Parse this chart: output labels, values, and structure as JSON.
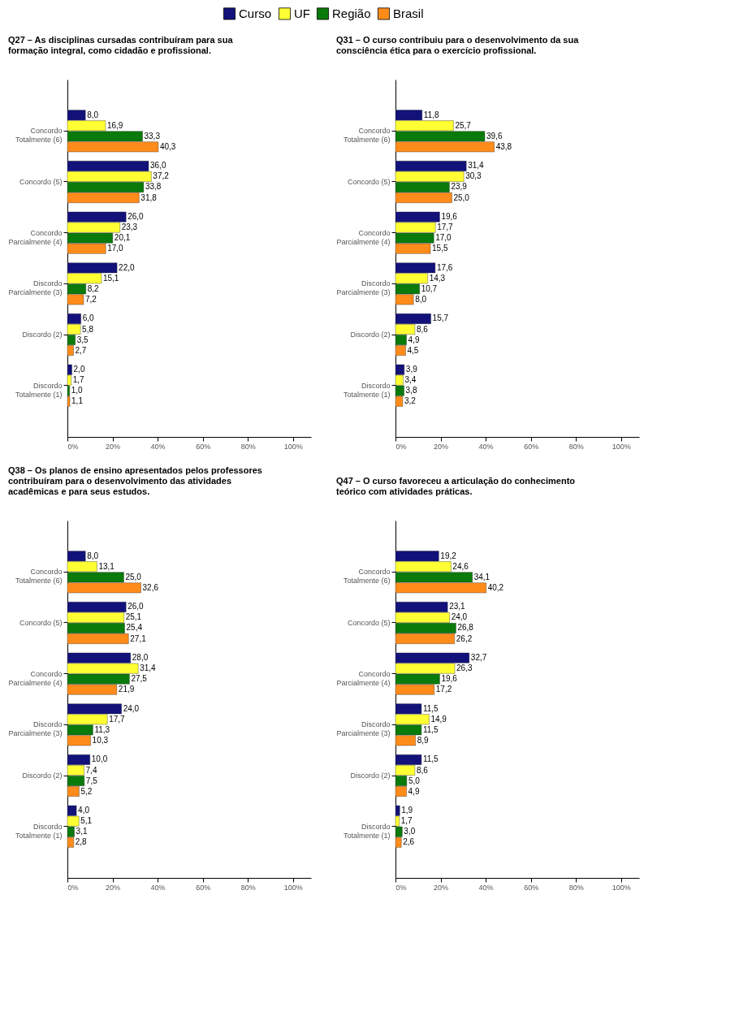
{
  "chart_data": [
    {
      "type": "bar",
      "orientation": "horizontal",
      "title": "Q27 – As disciplinas cursadas contribuíram para sua formação integral, como cidadão e profissional.",
      "legend": "top",
      "categories": [
        "Concordo Totalmente (6)",
        "Concordo (5)",
        "Concordo Parcialmente (4)",
        "Discordo Parcialmente (3)",
        "Discordo (2)",
        "Discordo Totalmente (1)"
      ],
      "xlim": [
        0,
        108
      ],
      "xticks": [
        {
          "value": 0,
          "label": "0%"
        },
        {
          "value": 20,
          "label": "20%"
        },
        {
          "value": 40,
          "label": "40%"
        },
        {
          "value": 60,
          "label": "60%"
        },
        {
          "value": 80,
          "label": "80%"
        },
        {
          "value": 100,
          "label": "100%"
        }
      ],
      "series": [
        {
          "name": "Curso",
          "color": "#12127a",
          "values": [
            8.0,
            36.0,
            26.0,
            22.0,
            6.0,
            2.0
          ],
          "value_labels": [
            "8,0",
            "36,0",
            "26,0",
            "22,0",
            "6,0",
            "2,0"
          ]
        },
        {
          "name": "UF",
          "color": "#ffff33",
          "values": [
            16.9,
            37.2,
            23.3,
            15.1,
            5.8,
            1.7
          ],
          "value_labels": [
            "16,9",
            "37,2",
            "23,3",
            "15,1",
            "5,8",
            "1,7"
          ]
        },
        {
          "name": "Região",
          "color": "#0a7a0a",
          "values": [
            33.3,
            33.8,
            20.1,
            8.2,
            3.5,
            1.0
          ],
          "value_labels": [
            "33,3",
            "33,8",
            "20,1",
            "8,2",
            "3,5",
            "1,0"
          ]
        },
        {
          "name": "Brasil",
          "color": "#ff8c1a",
          "values": [
            40.3,
            31.8,
            17.0,
            7.2,
            2.7,
            1.1
          ],
          "value_labels": [
            "40,3",
            "31,8",
            "17,0",
            "7,2",
            "2,7",
            "1,1"
          ]
        }
      ]
    },
    {
      "type": "bar",
      "orientation": "horizontal",
      "title": "Q31 – O curso contribuiu para o desenvolvimento da sua consciência ética para o exercício profissional.",
      "legend": "top",
      "categories": [
        "Concordo Totalmente (6)",
        "Concordo (5)",
        "Concordo Parcialmente (4)",
        "Discordo Parcialmente (3)",
        "Discordo (2)",
        "Discordo Totalmente (1)"
      ],
      "xlim": [
        0,
        108
      ],
      "xticks": [
        {
          "value": 0,
          "label": "0%"
        },
        {
          "value": 20,
          "label": "20%"
        },
        {
          "value": 40,
          "label": "40%"
        },
        {
          "value": 60,
          "label": "60%"
        },
        {
          "value": 80,
          "label": "80%"
        },
        {
          "value": 100,
          "label": "100%"
        }
      ],
      "series": [
        {
          "name": "Curso",
          "color": "#12127a",
          "values": [
            11.8,
            31.4,
            19.6,
            17.6,
            15.7,
            3.9
          ],
          "value_labels": [
            "11,8",
            "31,4",
            "19,6",
            "17,6",
            "15,7",
            "3,9"
          ]
        },
        {
          "name": "UF",
          "color": "#ffff33",
          "values": [
            25.7,
            30.3,
            17.7,
            14.3,
            8.6,
            3.4
          ],
          "value_labels": [
            "25,7",
            "30,3",
            "17,7",
            "14,3",
            "8,6",
            "3,4"
          ]
        },
        {
          "name": "Região",
          "color": "#0a7a0a",
          "values": [
            39.6,
            23.9,
            17.0,
            10.7,
            4.9,
            3.8
          ],
          "value_labels": [
            "39,6",
            "23,9",
            "17,0",
            "10,7",
            "4,9",
            "3,8"
          ]
        },
        {
          "name": "Brasil",
          "color": "#ff8c1a",
          "values": [
            43.8,
            25.0,
            15.5,
            8.0,
            4.5,
            3.2
          ],
          "value_labels": [
            "43,8",
            "25,0",
            "15,5",
            "8,0",
            "4,5",
            "3,2"
          ]
        }
      ]
    },
    {
      "type": "bar",
      "orientation": "horizontal",
      "title": "Q38 – Os planos de ensino apresentados pelos professores contribuíram para o desenvolvimento das atividades acadêmicas e para seus estudos.",
      "legend": "top",
      "categories": [
        "Concordo Totalmente (6)",
        "Concordo (5)",
        "Concordo Parcialmente (4)",
        "Discordo Parcialmente (3)",
        "Discordo (2)",
        "Discordo Totalmente (1)"
      ],
      "xlim": [
        0,
        108
      ],
      "xticks": [
        {
          "value": 0,
          "label": "0%"
        },
        {
          "value": 20,
          "label": "20%"
        },
        {
          "value": 40,
          "label": "40%"
        },
        {
          "value": 60,
          "label": "60%"
        },
        {
          "value": 80,
          "label": "80%"
        },
        {
          "value": 100,
          "label": "100%"
        }
      ],
      "series": [
        {
          "name": "Curso",
          "color": "#12127a",
          "values": [
            8.0,
            26.0,
            28.0,
            24.0,
            10.0,
            4.0
          ],
          "value_labels": [
            "8,0",
            "26,0",
            "28,0",
            "24,0",
            "10,0",
            "4,0"
          ]
        },
        {
          "name": "UF",
          "color": "#ffff33",
          "values": [
            13.1,
            25.1,
            31.4,
            17.7,
            7.4,
            5.1
          ],
          "value_labels": [
            "13,1",
            "25,1",
            "31,4",
            "17,7",
            "7,4",
            "5,1"
          ]
        },
        {
          "name": "Região",
          "color": "#0a7a0a",
          "values": [
            25.0,
            25.4,
            27.5,
            11.3,
            7.5,
            3.1
          ],
          "value_labels": [
            "25,0",
            "25,4",
            "27,5",
            "11,3",
            "7,5",
            "3,1"
          ]
        },
        {
          "name": "Brasil",
          "color": "#ff8c1a",
          "values": [
            32.6,
            27.1,
            21.9,
            10.3,
            5.2,
            2.8
          ],
          "value_labels": [
            "32,6",
            "27,1",
            "21,9",
            "10,3",
            "5,2",
            "2,8"
          ]
        }
      ]
    },
    {
      "type": "bar",
      "orientation": "horizontal",
      "title": "Q47 – O curso favoreceu a articulação do conhecimento teórico com atividades práticas.",
      "legend": "top",
      "categories": [
        "Concordo Totalmente (6)",
        "Concordo (5)",
        "Concordo Parcialmente (4)",
        "Discordo Parcialmente (3)",
        "Discordo (2)",
        "Discordo Totalmente (1)"
      ],
      "xlim": [
        0,
        108
      ],
      "xticks": [
        {
          "value": 0,
          "label": "0%"
        },
        {
          "value": 20,
          "label": "20%"
        },
        {
          "value": 40,
          "label": "40%"
        },
        {
          "value": 60,
          "label": "60%"
        },
        {
          "value": 80,
          "label": "80%"
        },
        {
          "value": 100,
          "label": "100%"
        }
      ],
      "series": [
        {
          "name": "Curso",
          "color": "#12127a",
          "values": [
            19.2,
            23.1,
            32.7,
            11.5,
            11.5,
            1.9
          ],
          "value_labels": [
            "19,2",
            "23,1",
            "32,7",
            "11,5",
            "11,5",
            "1,9"
          ]
        },
        {
          "name": "UF",
          "color": "#ffff33",
          "values": [
            24.6,
            24.0,
            26.3,
            14.9,
            8.6,
            1.7
          ],
          "value_labels": [
            "24,6",
            "24,0",
            "26,3",
            "14,9",
            "8,6",
            "1,7"
          ]
        },
        {
          "name": "Região",
          "color": "#0a7a0a",
          "values": [
            34.1,
            26.8,
            19.6,
            11.5,
            5.0,
            3.0
          ],
          "value_labels": [
            "34,1",
            "26,8",
            "19,6",
            "11,5",
            "5,0",
            "3,0"
          ]
        },
        {
          "name": "Brasil",
          "color": "#ff8c1a",
          "values": [
            40.2,
            26.2,
            17.2,
            8.9,
            4.9,
            2.6
          ],
          "value_labels": [
            "40,2",
            "26,2",
            "17,2",
            "8,9",
            "4,9",
            "2,6"
          ]
        }
      ]
    }
  ]
}
